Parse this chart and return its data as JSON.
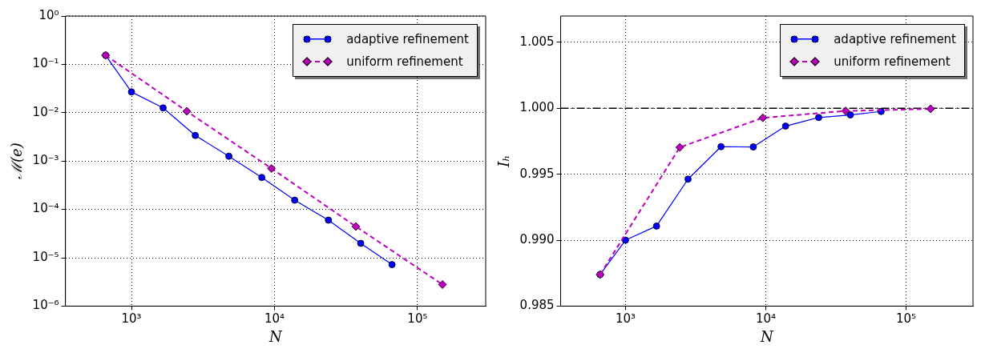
{
  "chart_data": [
    {
      "type": "line",
      "xlabel": "N",
      "ylabel": "ℳ(e)",
      "log": "xy",
      "xlim": [
        345,
        300000
      ],
      "xticks": [
        {
          "value": 1000,
          "label": "10³"
        },
        {
          "value": 10000,
          "label": "10⁴"
        },
        {
          "value": 100000,
          "label": "10⁵"
        }
      ],
      "ylim": [
        1e-06,
        1
      ],
      "yticks": [
        {
          "value": 1e-06,
          "label": "10⁻⁶"
        },
        {
          "value": 1e-05,
          "label": "10⁻⁵"
        },
        {
          "value": 0.0001,
          "label": "10⁻⁴"
        },
        {
          "value": 0.001,
          "label": "10⁻³"
        },
        {
          "value": 0.01,
          "label": "10⁻²"
        },
        {
          "value": 0.1,
          "label": "10⁻¹"
        },
        {
          "value": 1,
          "label": "10⁰"
        }
      ],
      "grid": true,
      "legend": "top right",
      "series": [
        {
          "name": "adaptive refinement",
          "color": "#0000ff",
          "marker": "circle",
          "line_style": "solid",
          "x": [
            659,
            1000,
            1664,
            2793,
            4797,
            8147,
            13840,
            23830,
            40080,
            66400
          ],
          "values": [
            0.154,
            0.0269,
            0.01256,
            0.00339,
            0.00126,
            0.000458,
            0.000155,
            6e-05,
            1.99e-05,
            7.2e-06
          ]
        },
        {
          "name": "uniform refinement",
          "color": "#bf00bf",
          "marker": "diamond",
          "line_style": "dashed",
          "x": [
            659,
            2438,
            9530,
            37080,
            149600
          ],
          "values": [
            0.154,
            0.0107,
            0.000702,
            4.43e-05,
            2.79e-06
          ]
        }
      ]
    },
    {
      "type": "line",
      "xlabel": "N",
      "ylabel": "Iₕ",
      "log": "x",
      "xlim": [
        345,
        300000
      ],
      "xticks": [
        {
          "value": 1000,
          "label": "10³"
        },
        {
          "value": 10000,
          "label": "10⁴"
        },
        {
          "value": 100000,
          "label": "10⁵"
        }
      ],
      "ylim": [
        0.985,
        1.007
      ],
      "yticks": [
        {
          "value": 0.985,
          "label": "0.985"
        },
        {
          "value": 0.99,
          "label": "0.990"
        },
        {
          "value": 0.995,
          "label": "0.995"
        },
        {
          "value": 1,
          "label": "1.000"
        },
        {
          "value": 1.005,
          "label": "1.005"
        }
      ],
      "grid": true,
      "legend": "top right",
      "ref_lines": [
        {
          "axis": "y",
          "value": 1,
          "color": "#000000",
          "line_style": "dashdot"
        }
      ],
      "series": [
        {
          "name": "adaptive refinement",
          "color": "#0000ff",
          "marker": "circle",
          "line_style": "solid",
          "x": [
            659,
            1000,
            1664,
            2793,
            4797,
            8147,
            13840,
            23830,
            40080,
            66400
          ],
          "values": [
            0.98739,
            0.99,
            0.99107,
            0.99463,
            0.99709,
            0.99707,
            0.99865,
            0.9993,
            0.9995,
            0.99976
          ]
        },
        {
          "name": "uniform refinement",
          "color": "#bf00bf",
          "marker": "diamond",
          "line_style": "dashed",
          "x": [
            659,
            2438,
            9530,
            37080,
            149600
          ],
          "values": [
            0.98739,
            0.99704,
            0.99928,
            0.9998,
            0.99996
          ]
        }
      ]
    }
  ]
}
